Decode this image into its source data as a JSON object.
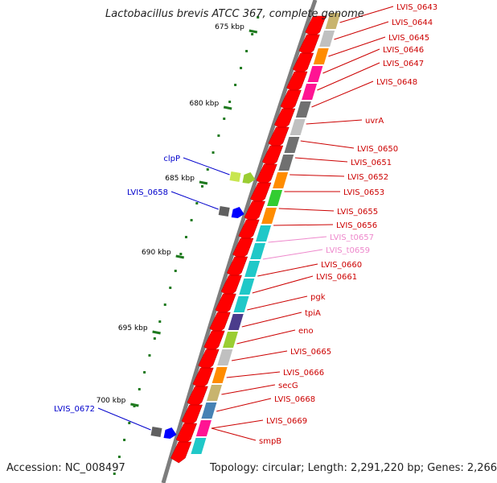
{
  "header": {
    "title": "Lactobacillus brevis ATCC 367, complete genome"
  },
  "footer": {
    "accession": "Accession: NC_008497",
    "topology": "Topology: circular; Length: 2,291,220 bp; Genes: 2,266"
  },
  "colors": {
    "backbone": "#7d7d7d",
    "tick": "#1f7a1f",
    "label_red": "#cc0000",
    "label_blue": "#0000cc",
    "label_pink": "#ee88cc"
  },
  "ruler_labels": [
    "675 kbp",
    "680 kbp",
    "685 kbp",
    "690 kbp",
    "695 kbp",
    "700 kbp"
  ],
  "labels_right": [
    {
      "text": "LVIS_0643",
      "color": "red"
    },
    {
      "text": "LVIS_0644",
      "color": "red"
    },
    {
      "text": "LVIS_0645",
      "color": "red"
    },
    {
      "text": "LVIS_0646",
      "color": "red"
    },
    {
      "text": "LVIS_0647",
      "color": "red"
    },
    {
      "text": "LVIS_0648",
      "color": "red"
    },
    {
      "text": "uvrA",
      "color": "red"
    },
    {
      "text": "LVIS_0650",
      "color": "red"
    },
    {
      "text": "LVIS_0651",
      "color": "red"
    },
    {
      "text": "LVIS_0652",
      "color": "red"
    },
    {
      "text": "LVIS_0653",
      "color": "red"
    },
    {
      "text": "LVIS_0655",
      "color": "red"
    },
    {
      "text": "LVIS_0656",
      "color": "red"
    },
    {
      "text": "LVIS_t0657",
      "color": "pink"
    },
    {
      "text": "LVIS_t0659",
      "color": "pink"
    },
    {
      "text": "LVIS_0660",
      "color": "red"
    },
    {
      "text": "LVIS_0661",
      "color": "red"
    },
    {
      "text": "pgk",
      "color": "red"
    },
    {
      "text": "tpiA",
      "color": "red"
    },
    {
      "text": "eno",
      "color": "red"
    },
    {
      "text": "LVIS_0665",
      "color": "red"
    },
    {
      "text": "LVIS_0666",
      "color": "red"
    },
    {
      "text": "secG",
      "color": "red"
    },
    {
      "text": "LVIS_0668",
      "color": "red"
    },
    {
      "text": "LVIS_0669",
      "color": "red"
    },
    {
      "text": "smpB",
      "color": "red"
    }
  ],
  "labels_left": [
    {
      "text": "clpP",
      "color": "blue"
    },
    {
      "text": "LVIS_0658",
      "color": "blue"
    },
    {
      "text": "LVIS_0672",
      "color": "blue"
    }
  ],
  "genes_fwd": [
    {
      "color": "#ff0000"
    },
    {
      "color": "#ff0000"
    },
    {
      "color": "#ff0000"
    },
    {
      "color": "#ff0000"
    },
    {
      "color": "#ff0000"
    },
    {
      "color": "#ff0000"
    },
    {
      "color": "#ff0000"
    },
    {
      "color": "#ff0000"
    },
    {
      "color": "#ff0000"
    },
    {
      "color": "#ff0000"
    },
    {
      "color": "#ff0000"
    },
    {
      "color": "#ff0000"
    },
    {
      "color": "#ff0000"
    },
    {
      "color": "#ff0000"
    },
    {
      "color": "#ff0000"
    },
    {
      "color": "#ff0000"
    },
    {
      "color": "#ff0000"
    },
    {
      "color": "#ff0000"
    },
    {
      "color": "#ff0000"
    },
    {
      "color": "#ff0000"
    },
    {
      "color": "#ff0000"
    },
    {
      "color": "#ff0000"
    },
    {
      "color": "#ff0000"
    },
    {
      "color": "#ff0000"
    }
  ],
  "genes_cog": [
    {
      "color": "#c8b46e"
    },
    {
      "color": "#c0c0c0"
    },
    {
      "color": "#ff8c00"
    },
    {
      "color": "#ff1493"
    },
    {
      "color": "#ff1493"
    },
    {
      "color": "#707070"
    },
    {
      "color": "#c0c0c0"
    },
    {
      "color": "#707070"
    },
    {
      "color": "#707070"
    },
    {
      "color": "#ff8c00"
    },
    {
      "color": "#32cd32"
    },
    {
      "color": "#ff8c00"
    },
    {
      "color": "#20c8c8"
    },
    {
      "color": "#20c8c8"
    },
    {
      "color": "#20c8c8"
    },
    {
      "color": "#20c8c8"
    },
    {
      "color": "#20c8c8"
    },
    {
      "color": "#4b3c8c"
    },
    {
      "color": "#9acd32"
    },
    {
      "color": "#c0c0c0"
    },
    {
      "color": "#ff8c00"
    },
    {
      "color": "#c8b46e"
    },
    {
      "color": "#4682b4"
    },
    {
      "color": "#ff1493"
    },
    {
      "color": "#20c8c8"
    }
  ],
  "genes_rev": [
    {
      "color": "#c8e650",
      "cog": "#9acd32"
    },
    {
      "color": "#606060",
      "cog": "#0000ff"
    },
    {
      "color": "#606060",
      "cog": "#0000ff"
    }
  ]
}
